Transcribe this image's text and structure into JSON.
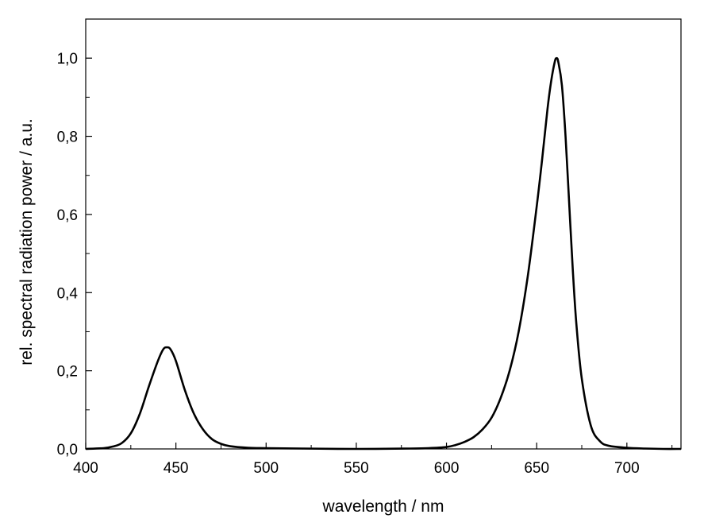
{
  "chart_data": {
    "type": "line",
    "title": "",
    "xlabel": "wavelength / nm",
    "ylabel": "rel. spectral radiation power / a.u.",
    "xlim": [
      400,
      730
    ],
    "ylim": [
      0,
      1.1
    ],
    "grid": false,
    "legend": "none",
    "line_color": "#000000",
    "x_ticks": [
      400,
      450,
      500,
      550,
      600,
      650,
      700
    ],
    "x_tick_labels": [
      "400",
      "450",
      "500",
      "550",
      "600",
      "650",
      "700"
    ],
    "x_minor_ticks": [
      425,
      475,
      525,
      575,
      625,
      675,
      725
    ],
    "y_ticks": [
      0,
      0.2,
      0.4,
      0.6,
      0.8,
      1.0
    ],
    "y_tick_labels": [
      "0,0",
      "0,2",
      "0,4",
      "0,6",
      "0,8",
      "1,0"
    ],
    "y_minor_ticks": [
      0.1,
      0.3,
      0.5,
      0.7,
      0.9
    ],
    "series": [
      {
        "x": [
          400,
          410,
          415,
          420,
          425,
          430,
          435,
          440,
          443,
          445,
          447,
          450,
          455,
          460,
          465,
          470,
          475,
          480,
          490,
          500,
          520,
          550,
          580,
          590,
          600,
          605,
          610,
          615,
          620,
          625,
          630,
          635,
          640,
          645,
          650,
          653,
          656,
          658,
          660,
          661,
          662,
          664,
          666,
          668,
          670,
          672,
          675,
          680,
          685,
          690,
          700,
          710,
          720,
          730
        ],
        "y": [
          0.0,
          0.002,
          0.006,
          0.015,
          0.04,
          0.09,
          0.16,
          0.225,
          0.255,
          0.26,
          0.255,
          0.225,
          0.15,
          0.09,
          0.05,
          0.025,
          0.013,
          0.007,
          0.003,
          0.002,
          0.001,
          0.0,
          0.001,
          0.002,
          0.005,
          0.01,
          0.018,
          0.03,
          0.05,
          0.08,
          0.13,
          0.2,
          0.3,
          0.44,
          0.62,
          0.74,
          0.87,
          0.94,
          0.99,
          1.0,
          0.99,
          0.93,
          0.8,
          0.63,
          0.46,
          0.32,
          0.18,
          0.06,
          0.02,
          0.008,
          0.003,
          0.001,
          0.0,
          0.0
        ]
      }
    ]
  }
}
